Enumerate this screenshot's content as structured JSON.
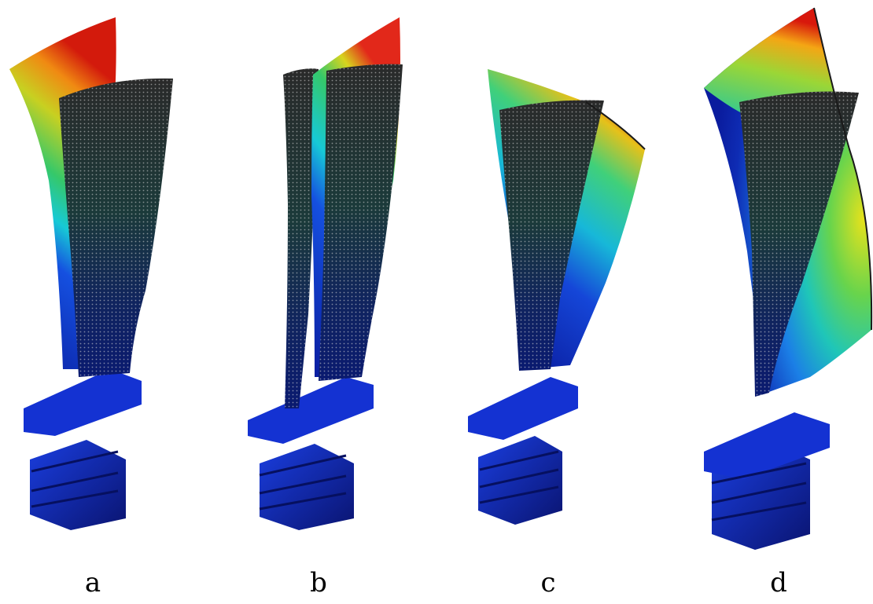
{
  "figure": {
    "panels": [
      {
        "label": "a"
      },
      {
        "label": "b"
      },
      {
        "label": "c"
      },
      {
        "label": "d"
      }
    ]
  }
}
